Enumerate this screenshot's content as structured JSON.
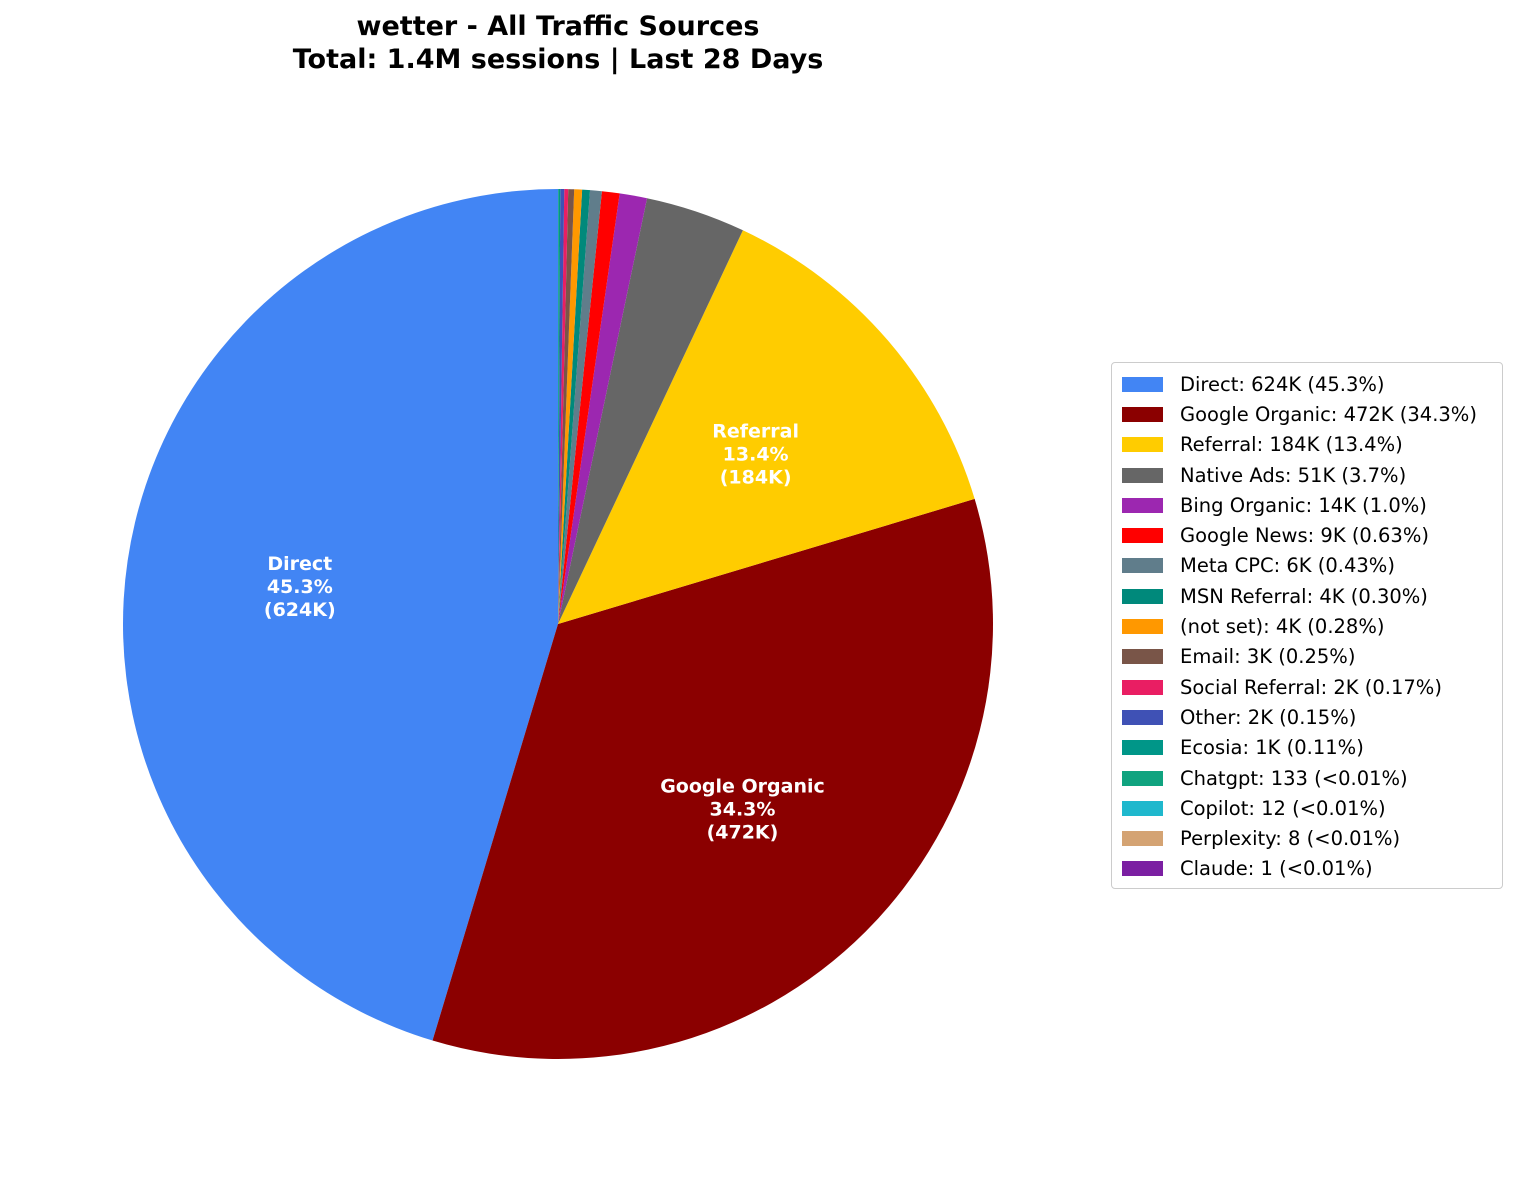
{
  "title_line1": "wetter - All Traffic Sources",
  "title_line2": "Total: 1.4M sessions | Last 28 Days",
  "chart_data": {
    "type": "pie",
    "title": "wetter - All Traffic Sources\nTotal: 1.4M sessions | Last 28 Days",
    "total_sessions": "1.4M",
    "period": "Last 28 Days",
    "start_angle": 90,
    "direction": "counterclockwise",
    "legend_position": "right",
    "categories": [
      "Direct",
      "Google Organic",
      "Referral",
      "Native Ads",
      "Bing Organic",
      "Google News",
      "Meta CPC",
      "MSN Referral",
      "(not set)",
      "Email",
      "Social Referral",
      "Other",
      "Ecosia",
      "Chatgpt",
      "Copilot",
      "Perplexity",
      "Claude"
    ],
    "values": [
      624000,
      472000,
      184000,
      51000,
      14000,
      9000,
      6000,
      4000,
      4000,
      3000,
      2000,
      2000,
      1000,
      133,
      12,
      8,
      1
    ],
    "percentages": [
      45.3,
      34.3,
      13.4,
      3.7,
      1.0,
      0.63,
      0.43,
      0.3,
      0.28,
      0.25,
      0.17,
      0.15,
      0.11,
      0.01,
      0.001,
      0.001,
      0.0001
    ],
    "colors": [
      "#4285f4",
      "#8b0000",
      "#ffcc00",
      "#666666",
      "#9c27b0",
      "#ff0000",
      "#607d8b",
      "#00897b",
      "#ff9800",
      "#795548",
      "#e91e63",
      "#3f51b5",
      "#009688",
      "#10a37f",
      "#1fb8cd",
      "#d4a373",
      "#7b1fa2"
    ],
    "slice_labels": [
      {
        "name": "Direct",
        "pct": "45.3%",
        "value": "(624K)"
      },
      {
        "name": "Google Organic",
        "pct": "34.3%",
        "value": "(472K)"
      },
      {
        "name": "Referral",
        "pct": "13.4%",
        "value": "(184K)"
      }
    ]
  },
  "legend": [
    {
      "label": "Direct: 624K (45.3%)",
      "color": "#4285f4"
    },
    {
      "label": "Google Organic: 472K (34.3%)",
      "color": "#8b0000"
    },
    {
      "label": "Referral: 184K (13.4%)",
      "color": "#ffcc00"
    },
    {
      "label": "Native Ads: 51K (3.7%)",
      "color": "#666666"
    },
    {
      "label": "Bing Organic: 14K (1.0%)",
      "color": "#9c27b0"
    },
    {
      "label": "Google News: 9K (0.63%)",
      "color": "#ff0000"
    },
    {
      "label": "Meta CPC: 6K (0.43%)",
      "color": "#607d8b"
    },
    {
      "label": "MSN Referral: 4K (0.30%)",
      "color": "#00897b"
    },
    {
      "label": "(not set): 4K (0.28%)",
      "color": "#ff9800"
    },
    {
      "label": "Email: 3K (0.25%)",
      "color": "#795548"
    },
    {
      "label": "Social Referral: 2K (0.17%)",
      "color": "#e91e63"
    },
    {
      "label": "Other: 2K (0.15%)",
      "color": "#3f51b5"
    },
    {
      "label": "Ecosia: 1K (0.11%)",
      "color": "#009688"
    },
    {
      "label": "Chatgpt: 133 (<0.01%)",
      "color": "#10a37f"
    },
    {
      "label": "Copilot: 12 (<0.01%)",
      "color": "#1fb8cd"
    },
    {
      "label": "Perplexity: 8 (<0.01%)",
      "color": "#d4a373"
    },
    {
      "label": "Claude: 1 (<0.01%)",
      "color": "#7b1fa2"
    }
  ]
}
